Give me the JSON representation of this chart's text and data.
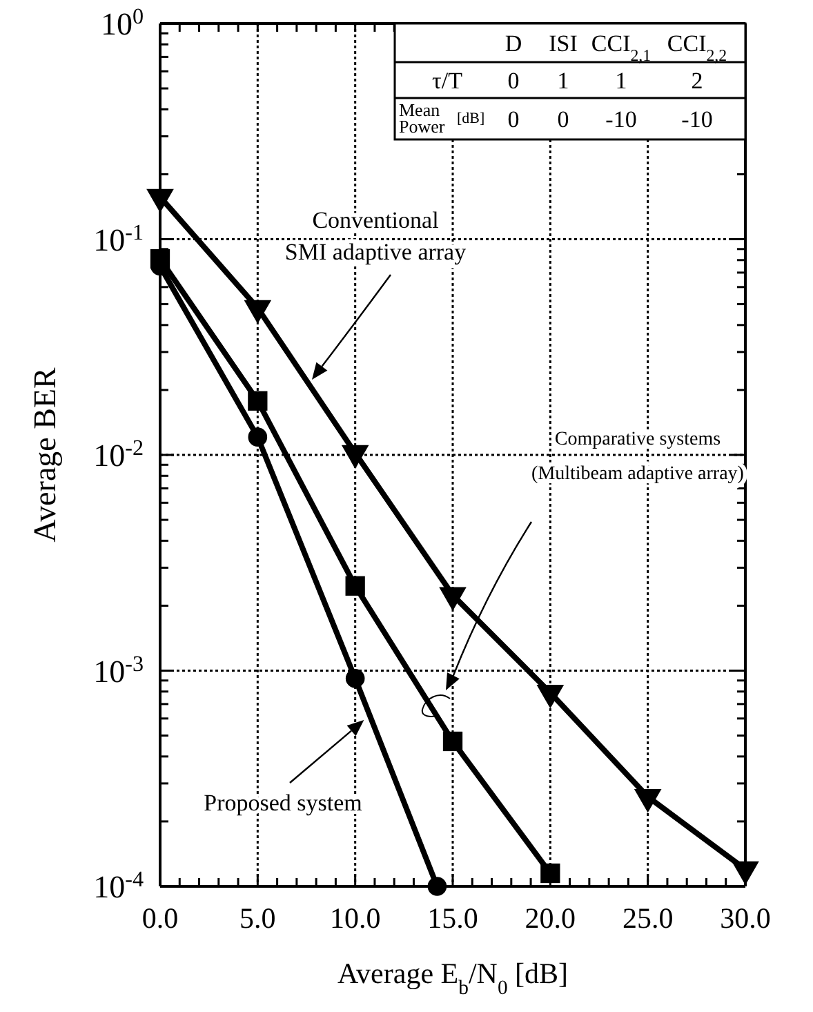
{
  "chart_data": {
    "type": "line",
    "xlabel": "Average E$_{b}$/N$_{0}$ [dB]",
    "ylabel": "Average BER",
    "log": "y",
    "grid": true,
    "line_style": "solid",
    "xlim": [
      0,
      30
    ],
    "ylim": [
      0.0001,
      1
    ],
    "xticks": [
      {
        "value": 0,
        "label": "0.0"
      },
      {
        "value": 1,
        "label": null
      },
      {
        "value": 2,
        "label": null
      },
      {
        "value": 3,
        "label": null
      },
      {
        "value": 4,
        "label": null
      },
      {
        "value": 5,
        "label": "5.0"
      },
      {
        "value": 6,
        "label": null
      },
      {
        "value": 7,
        "label": null
      },
      {
        "value": 8,
        "label": null
      },
      {
        "value": 9,
        "label": null
      },
      {
        "value": 10,
        "label": "10.0"
      },
      {
        "value": 11,
        "label": null
      },
      {
        "value": 12,
        "label": null
      },
      {
        "value": 13,
        "label": null
      },
      {
        "value": 14,
        "label": null
      },
      {
        "value": 15,
        "label": "15.0"
      },
      {
        "value": 16,
        "label": null
      },
      {
        "value": 17,
        "label": null
      },
      {
        "value": 18,
        "label": null
      },
      {
        "value": 19,
        "label": null
      },
      {
        "value": 20,
        "label": "20.0"
      },
      {
        "value": 21,
        "label": null
      },
      {
        "value": 22,
        "label": null
      },
      {
        "value": 23,
        "label": null
      },
      {
        "value": 24,
        "label": null
      },
      {
        "value": 25,
        "label": "25.0"
      },
      {
        "value": 26,
        "label": null
      },
      {
        "value": 27,
        "label": null
      },
      {
        "value": 28,
        "label": null
      },
      {
        "value": 29,
        "label": null
      },
      {
        "value": 30,
        "label": "30.0"
      }
    ],
    "yticks": [
      {
        "value": 0.0001,
        "label": "10$^{-4}$"
      },
      {
        "value": 0.0002,
        "label": null
      },
      {
        "value": 0.0003,
        "label": null
      },
      {
        "value": 0.0004,
        "label": null
      },
      {
        "value": 0.0005,
        "label": null
      },
      {
        "value": 0.0006,
        "label": null
      },
      {
        "value": 0.0007,
        "label": null
      },
      {
        "value": 0.0008,
        "label": null
      },
      {
        "value": 0.0009,
        "label": null
      },
      {
        "value": 0.001,
        "label": "10$^{-3}$"
      },
      {
        "value": 0.002,
        "label": null
      },
      {
        "value": 0.003,
        "label": null
      },
      {
        "value": 0.004,
        "label": null
      },
      {
        "value": 0.005,
        "label": null
      },
      {
        "value": 0.006,
        "label": null
      },
      {
        "value": 0.007,
        "label": null
      },
      {
        "value": 0.008,
        "label": null
      },
      {
        "value": 0.009,
        "label": null
      },
      {
        "value": 0.01,
        "label": "10$^{-2}$"
      },
      {
        "value": 0.02,
        "label": null
      },
      {
        "value": 0.03,
        "label": null
      },
      {
        "value": 0.04,
        "label": null
      },
      {
        "value": 0.05,
        "label": null
      },
      {
        "value": 0.06,
        "label": null
      },
      {
        "value": 0.07,
        "label": null
      },
      {
        "value": 0.08,
        "label": null
      },
      {
        "value": 0.09,
        "label": null
      },
      {
        "value": 0.1,
        "label": "10$^{-1}$"
      },
      {
        "value": 0.2,
        "label": null
      },
      {
        "value": 0.3,
        "label": null
      },
      {
        "value": 0.4,
        "label": null
      },
      {
        "value": 0.5,
        "label": null
      },
      {
        "value": 0.6,
        "label": null
      },
      {
        "value": 0.7,
        "label": null
      },
      {
        "value": 0.8,
        "label": null
      },
      {
        "value": 0.9,
        "label": null
      },
      {
        "value": 1,
        "label": "10$^{0}$"
      }
    ],
    "series": [
      {
        "color": "#000000",
        "marker": "triangle",
        "x": [
          0,
          5,
          10,
          15,
          20,
          25,
          30
        ],
        "values": [
          0.157,
          0.048,
          0.0102,
          0.00224,
          0.00079,
          0.00026,
          0.00012
        ]
      },
      {
        "color": "#000000",
        "marker": "square",
        "x": [
          0,
          5,
          10,
          15,
          20
        ],
        "values": [
          0.081,
          0.0178,
          0.00247,
          0.00047,
          0.000115
        ]
      },
      {
        "color": "#000000",
        "marker": "circle",
        "x": [
          0,
          5,
          10,
          14.2
        ],
        "values": [
          0.075,
          0.0121,
          0.00092,
          0.0001
        ]
      }
    ],
    "annotations": [
      "D",
      "ISI",
      "CCI$_{2,1}$",
      "CCI$_{2,2}$",
      "τ/T",
      "0",
      "1",
      "1",
      "2",
      "Mean Power [dB]",
      "0",
      "0",
      "-10",
      "-10",
      "Conventional\nSMI adaptive array",
      "Comparative systems\n(Multibeam adaptive array)",
      {
        "text": "Proposed system",
        "x": 10.45,
        "y": 0.00059
      }
    ]
  }
}
